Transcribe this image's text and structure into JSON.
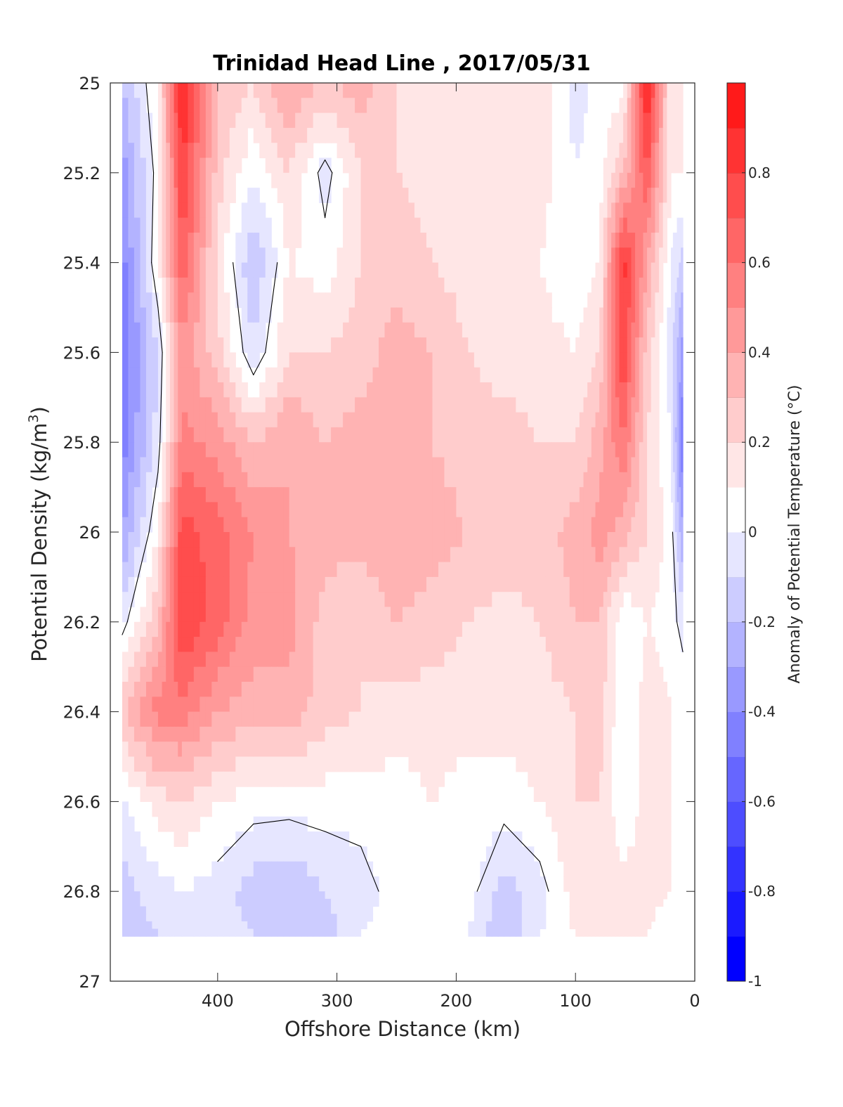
{
  "chart_data": {
    "type": "heatmap",
    "title": "Trinidad Head Line , 2017/05/31",
    "xlabel": "Offshore Distance (km)",
    "ylabel": "Potential Density (kg/m",
    "ylabel_sup": "3",
    "ylabel_close": ")",
    "xlim": [
      490,
      0
    ],
    "ylim": [
      27,
      25
    ],
    "y_reversed": true,
    "x_reversed": true,
    "xticks": [
      {
        "value": 400,
        "label": "400"
      },
      {
        "value": 300,
        "label": "300"
      },
      {
        "value": 200,
        "label": "200"
      },
      {
        "value": 100,
        "label": "100"
      },
      {
        "value": 0,
        "label": "0"
      }
    ],
    "yticks": [
      {
        "value": 25,
        "label": "25"
      },
      {
        "value": 25.2,
        "label": "25.2"
      },
      {
        "value": 25.4,
        "label": "25.4"
      },
      {
        "value": 25.6,
        "label": "25.6"
      },
      {
        "value": 25.8,
        "label": "25.8"
      },
      {
        "value": 26,
        "label": "26"
      },
      {
        "value": 26.2,
        "label": "26.2"
      },
      {
        "value": 26.4,
        "label": "26.4"
      },
      {
        "value": 26.6,
        "label": "26.6"
      },
      {
        "value": 26.8,
        "label": "26.8"
      },
      {
        "value": 27,
        "label": "27"
      }
    ],
    "colorbar": {
      "label": "Anomaly of Potential Temperature (°C)",
      "range": [
        -1,
        1
      ],
      "ticks": [
        {
          "value": 0.8,
          "label": "0.8"
        },
        {
          "value": 0.6,
          "label": "0.6"
        },
        {
          "value": 0.4,
          "label": "0.4"
        },
        {
          "value": 0.2,
          "label": "0.2"
        },
        {
          "value": 0,
          "label": "0"
        },
        {
          "value": -0.2,
          "label": "-0.2"
        },
        {
          "value": -0.4,
          "label": "-0.4"
        },
        {
          "value": -0.6,
          "label": "-0.6"
        },
        {
          "value": -0.8,
          "label": "-0.8"
        },
        {
          "value": -1,
          "label": "-1"
        }
      ],
      "colors": [
        "#0000ff",
        "#1a1aff",
        "#3333ff",
        "#4d4dff",
        "#6666ff",
        "#8080ff",
        "#9999ff",
        "#b3b3ff",
        "#ccccff",
        "#e6e6ff",
        "#ffffff",
        "#ffe6e6",
        "#ffcccc",
        "#ffb3b3",
        "#ff9999",
        "#ff8080",
        "#ff6666",
        "#ff4d4d",
        "#ff3333",
        "#ff1a1a"
      ]
    },
    "x_grid": [
      480,
      450,
      430,
      400,
      370,
      340,
      310,
      280,
      250,
      220,
      190,
      160,
      130,
      100,
      80,
      60,
      40,
      20,
      10
    ],
    "y_grid": [
      25.0,
      25.2,
      25.4,
      25.6,
      25.8,
      26.0,
      26.2,
      26.4,
      26.6,
      26.8,
      26.9
    ],
    "z": [
      [
        -0.2,
        0.1,
        0.95,
        0.3,
        0.2,
        0.4,
        0.3,
        0.35,
        0.2,
        0.15,
        0.1,
        0.15,
        0.15,
        -0.05,
        0.05,
        0.05,
        0.95,
        0.1,
        0.1
      ],
      [
        -0.35,
        0.05,
        0.8,
        0.25,
        0.0,
        0.2,
        -0.05,
        0.2,
        0.2,
        0.15,
        0.1,
        0.1,
        0.15,
        0.0,
        0.05,
        0.3,
        0.7,
        0.1,
        0.1
      ],
      [
        -0.45,
        0.1,
        0.7,
        0.15,
        -0.2,
        0.1,
        0.05,
        0.2,
        0.25,
        0.2,
        0.15,
        0.1,
        0.1,
        0.0,
        0.1,
        0.85,
        0.4,
        0.0,
        -0.15
      ],
      [
        -0.5,
        -0.1,
        0.45,
        0.25,
        -0.1,
        0.2,
        0.2,
        0.25,
        0.35,
        0.3,
        0.2,
        0.15,
        0.15,
        0.1,
        0.2,
        0.8,
        0.25,
        -0.05,
        -0.35
      ],
      [
        -0.45,
        -0.05,
        0.55,
        0.45,
        0.3,
        0.4,
        0.3,
        0.35,
        0.4,
        0.3,
        0.25,
        0.25,
        0.2,
        0.2,
        0.35,
        0.6,
        0.2,
        0.0,
        -0.5
      ],
      [
        -0.3,
        0.1,
        0.75,
        0.65,
        0.5,
        0.4,
        0.35,
        0.35,
        0.4,
        0.35,
        0.3,
        0.3,
        0.25,
        0.35,
        0.45,
        0.35,
        0.2,
        0.05,
        -0.3
      ],
      [
        -0.05,
        0.3,
        0.8,
        0.65,
        0.45,
        0.45,
        0.25,
        0.2,
        0.3,
        0.25,
        0.2,
        0.15,
        0.2,
        0.3,
        0.3,
        0.0,
        0.1,
        0.05,
        -0.05
      ],
      [
        0.3,
        0.55,
        0.55,
        0.4,
        0.35,
        0.35,
        0.25,
        0.2,
        0.15,
        0.15,
        0.15,
        0.15,
        0.15,
        0.2,
        0.25,
        0.0,
        0.15,
        0.1,
        0.1
      ],
      [
        0.0,
        0.15,
        0.2,
        0.1,
        0.05,
        0.05,
        0.05,
        0.05,
        0.05,
        0.1,
        0.05,
        0.05,
        0.1,
        0.2,
        0.2,
        0.0,
        0.15,
        0.1,
        0.0
      ],
      [
        -0.15,
        -0.05,
        0.0,
        -0.05,
        -0.15,
        -0.2,
        -0.1,
        -0.05,
        0.05,
        0.05,
        0.05,
        -0.15,
        -0.05,
        0.15,
        0.2,
        0.15,
        0.15,
        0.1,
        0.0
      ],
      [
        -0.15,
        -0.1,
        0.0,
        -0.05,
        -0.1,
        -0.15,
        -0.15,
        0.0,
        0.05,
        0.05,
        0.0,
        -0.2,
        0.0,
        0.1,
        0.2,
        0.15,
        0.1,
        0.0,
        0.0
      ]
    ],
    "grid": false,
    "contour_level": 0
  }
}
